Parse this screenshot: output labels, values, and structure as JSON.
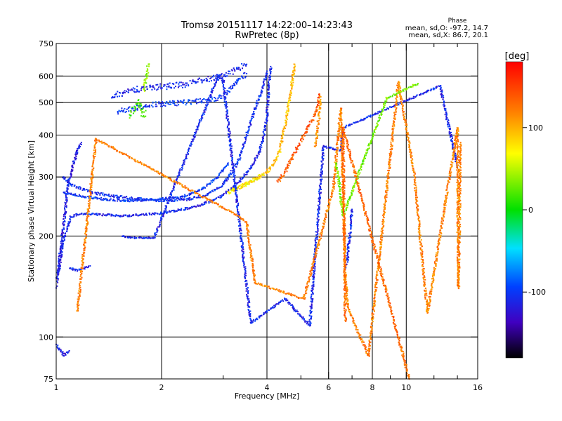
{
  "chart_data": {
    "type": "scatter",
    "title": "Tromsø 20151117 14:22:00–14:23:43",
    "subtitle": "RwPretec (8p)",
    "xlabel": "Frequency [MHz]",
    "ylabel": "Stationary phase Virtual Height [km]",
    "x_scale": "log",
    "y_scale": "log",
    "xlim": [
      1,
      16
    ],
    "ylim": [
      75,
      750
    ],
    "x_ticks": [
      1,
      2,
      4,
      6,
      8,
      10,
      16
    ],
    "x_tick_labels": [
      "1",
      "2",
      "4",
      "6",
      "8",
      "10",
      "16"
    ],
    "x_grid": [
      2,
      4,
      6,
      8,
      10
    ],
    "x_minor": [
      3,
      5,
      7,
      9,
      12,
      14
    ],
    "y_ticks": [
      75,
      100,
      200,
      300,
      400,
      500,
      600,
      750
    ],
    "y_tick_labels": [
      "75",
      "100",
      "200",
      "300",
      "400",
      "500",
      "600",
      "750"
    ],
    "y_grid": [
      100,
      200,
      300,
      400,
      500,
      600
    ],
    "grid": true,
    "stats": {
      "heading": "Phase",
      "line_o": "mean, sd,O: -97.2, 14.7",
      "line_x": "mean, sd,X: 86.7, 20.1"
    },
    "colorbar": {
      "label": "[deg]",
      "range": [
        -180,
        180
      ],
      "ticks": [
        100,
        0,
        -100
      ],
      "tick_labels": [
        "100",
        "0",
        "-100"
      ]
    },
    "traces": [
      {
        "phase_deg": -110,
        "spread_km": 5,
        "points": [
          [
            1.0,
            150
          ],
          [
            1.02,
            160
          ],
          [
            1.04,
            185
          ],
          [
            1.06,
            200
          ],
          [
            1.08,
            215
          ],
          [
            1.1,
            228
          ],
          [
            1.15,
            232
          ],
          [
            1.2,
            233
          ],
          [
            1.3,
            232
          ],
          [
            1.4,
            231
          ],
          [
            1.5,
            230
          ],
          [
            1.6,
            230
          ],
          [
            1.7,
            231
          ],
          [
            1.8,
            232
          ],
          [
            2.0,
            234
          ],
          [
            2.2,
            238
          ],
          [
            2.4,
            242
          ],
          [
            2.6,
            248
          ],
          [
            2.8,
            255
          ],
          [
            3.0,
            265
          ],
          [
            3.2,
            280
          ],
          [
            3.4,
            297
          ],
          [
            3.6,
            320
          ],
          [
            3.8,
            355
          ],
          [
            3.9,
            390
          ],
          [
            4.0,
            450
          ],
          [
            4.05,
            560
          ],
          [
            4.1,
            640
          ]
        ]
      },
      {
        "phase_deg": -105,
        "spread_km": 6,
        "points": [
          [
            1.05,
            300
          ],
          [
            1.1,
            285
          ],
          [
            1.2,
            275
          ],
          [
            1.3,
            268
          ],
          [
            1.5,
            262
          ],
          [
            1.7,
            258
          ],
          [
            1.9,
            256
          ],
          [
            2.1,
            255
          ],
          [
            2.4,
            258
          ],
          [
            2.7,
            265
          ],
          [
            3.0,
            285
          ],
          [
            3.3,
            330
          ],
          [
            3.5,
            400
          ],
          [
            3.7,
            480
          ],
          [
            3.9,
            560
          ],
          [
            4.0,
            620
          ]
        ]
      },
      {
        "phase_deg": -100,
        "spread_km": 5,
        "points": [
          [
            1.05,
            270
          ],
          [
            1.2,
            262
          ],
          [
            1.4,
            257
          ],
          [
            1.6,
            255
          ],
          [
            1.8,
            256
          ],
          [
            2.0,
            258
          ],
          [
            2.3,
            262
          ],
          [
            2.6,
            275
          ],
          [
            2.9,
            300
          ],
          [
            3.1,
            330
          ]
        ]
      },
      {
        "phase_deg": -115,
        "spread_km": 6,
        "points": [
          [
            1.0,
            140
          ],
          [
            1.01,
            155
          ],
          [
            1.02,
            170
          ],
          [
            1.03,
            185
          ],
          [
            1.04,
            200
          ],
          [
            1.05,
            215
          ],
          [
            1.06,
            235
          ],
          [
            1.07,
            260
          ],
          [
            1.08,
            285
          ],
          [
            1.1,
            305
          ],
          [
            1.12,
            330
          ],
          [
            1.15,
            360
          ],
          [
            1.18,
            380
          ]
        ]
      },
      {
        "phase_deg": -105,
        "spread_km": 4,
        "points": [
          [
            1.1,
            160
          ],
          [
            1.15,
            158
          ],
          [
            1.2,
            160
          ],
          [
            1.25,
            163
          ]
        ]
      },
      {
        "phase_deg": -115,
        "spread_km": 3,
        "points": [
          [
            1.0,
            95
          ],
          [
            1.02,
            92
          ],
          [
            1.04,
            90
          ],
          [
            1.05,
            88
          ],
          [
            1.09,
            91
          ]
        ]
      },
      {
        "phase_deg": -110,
        "spread_km": 14,
        "points": [
          [
            1.45,
            520
          ],
          [
            1.55,
            535
          ],
          [
            1.65,
            545
          ],
          [
            1.75,
            550
          ],
          [
            1.9,
            555
          ],
          [
            2.1,
            560
          ],
          [
            2.3,
            565
          ],
          [
            2.5,
            575
          ],
          [
            2.7,
            585
          ],
          [
            2.9,
            595
          ],
          [
            3.1,
            610
          ],
          [
            3.3,
            630
          ],
          [
            3.5,
            650
          ]
        ]
      },
      {
        "phase_deg": -100,
        "spread_km": 12,
        "points": [
          [
            1.5,
            470
          ],
          [
            1.65,
            480
          ],
          [
            1.8,
            490
          ],
          [
            2.0,
            495
          ],
          [
            2.3,
            500
          ],
          [
            2.6,
            505
          ],
          [
            2.9,
            515
          ],
          [
            3.1,
            540
          ],
          [
            3.3,
            580
          ],
          [
            3.5,
            610
          ]
        ]
      },
      {
        "phase_deg": 20,
        "spread_km": 22,
        "points": [
          [
            1.62,
            460
          ],
          [
            1.68,
            480
          ],
          [
            1.72,
            500
          ],
          [
            1.76,
            470
          ],
          [
            1.8,
            455
          ]
        ]
      },
      {
        "phase_deg": 40,
        "spread_km": 15,
        "points": [
          [
            1.78,
            550
          ],
          [
            1.8,
            580
          ],
          [
            1.82,
            620
          ],
          [
            1.84,
            650
          ]
        ]
      },
      {
        "phase_deg": 95,
        "spread_km": 8,
        "points": [
          [
            3.2,
            275
          ],
          [
            3.4,
            282
          ],
          [
            3.6,
            290
          ],
          [
            3.8,
            300
          ],
          [
            4.0,
            310
          ],
          [
            4.2,
            330
          ],
          [
            4.35,
            360
          ],
          [
            4.45,
            400
          ],
          [
            4.55,
            450
          ],
          [
            4.65,
            520
          ],
          [
            4.75,
            600
          ],
          [
            4.8,
            650
          ]
        ]
      },
      {
        "phase_deg": 70,
        "spread_km": 8,
        "points": [
          [
            3.1,
            270
          ],
          [
            3.3,
            278
          ],
          [
            3.5,
            285
          ],
          [
            3.7,
            295
          ],
          [
            3.9,
            305
          ]
        ]
      },
      {
        "phase_deg": 140,
        "spread_km": 10,
        "points": [
          [
            4.3,
            290
          ],
          [
            4.5,
            310
          ],
          [
            4.7,
            340
          ],
          [
            4.9,
            370
          ],
          [
            5.1,
            400
          ],
          [
            5.3,
            430
          ],
          [
            5.5,
            460
          ],
          [
            5.6,
            500
          ],
          [
            5.65,
            530
          ]
        ]
      },
      {
        "phase_deg": 110,
        "spread_km": 10,
        "points": [
          [
            5.5,
            370
          ],
          [
            5.55,
            400
          ],
          [
            5.6,
            430
          ],
          [
            5.65,
            470
          ],
          [
            5.7,
            520
          ]
        ]
      },
      {
        "phase_deg": -110,
        "spread_km": 6,
        "points": [
          [
            6.7,
            160
          ],
          [
            6.8,
            170
          ],
          [
            6.85,
            190
          ],
          [
            6.9,
            200
          ],
          [
            6.95,
            220
          ],
          [
            7.0,
            240
          ]
        ]
      },
      {
        "phase_deg": -110,
        "spread_km": 4,
        "points": [
          [
            1.55,
            200
          ],
          [
            1.6,
            198
          ],
          [
            1.9,
            197
          ],
          [
            2.9,
            600
          ],
          [
            3.0,
            580
          ],
          [
            3.6,
            110
          ],
          [
            4.5,
            130
          ],
          [
            5.3,
            108
          ],
          [
            5.8,
            370
          ],
          [
            6.5,
            360
          ],
          [
            6.6,
            420
          ],
          [
            12.5,
            560
          ],
          [
            14.0,
            320
          ]
        ]
      },
      {
        "phase_deg": 120,
        "spread_km": 4,
        "points": [
          [
            1.15,
            120
          ],
          [
            1.3,
            390
          ],
          [
            3.3,
            230
          ],
          [
            3.5,
            220
          ],
          [
            3.7,
            145
          ],
          [
            5.1,
            130
          ],
          [
            6.2,
            280
          ],
          [
            6.5,
            480
          ],
          [
            6.7,
            150
          ],
          [
            6.8,
            125
          ],
          [
            7.1,
            110
          ],
          [
            7.8,
            88
          ],
          [
            9.5,
            575
          ],
          [
            10.5,
            315
          ],
          [
            11.5,
            118
          ],
          [
            14.0,
            420
          ],
          [
            14.1,
            140
          ],
          [
            14.3,
            380
          ]
        ]
      },
      {
        "phase_deg": 30,
        "spread_km": 4,
        "points": [
          [
            6.3,
            330
          ],
          [
            6.4,
            300
          ],
          [
            6.5,
            260
          ],
          [
            6.6,
            230
          ],
          [
            8.8,
            515
          ],
          [
            10.8,
            570
          ]
        ]
      },
      {
        "phase_deg": 130,
        "spread_km": 4,
        "points": [
          [
            6.7,
            112
          ],
          [
            6.6,
            420
          ],
          [
            10.2,
            75
          ]
        ]
      }
    ]
  }
}
